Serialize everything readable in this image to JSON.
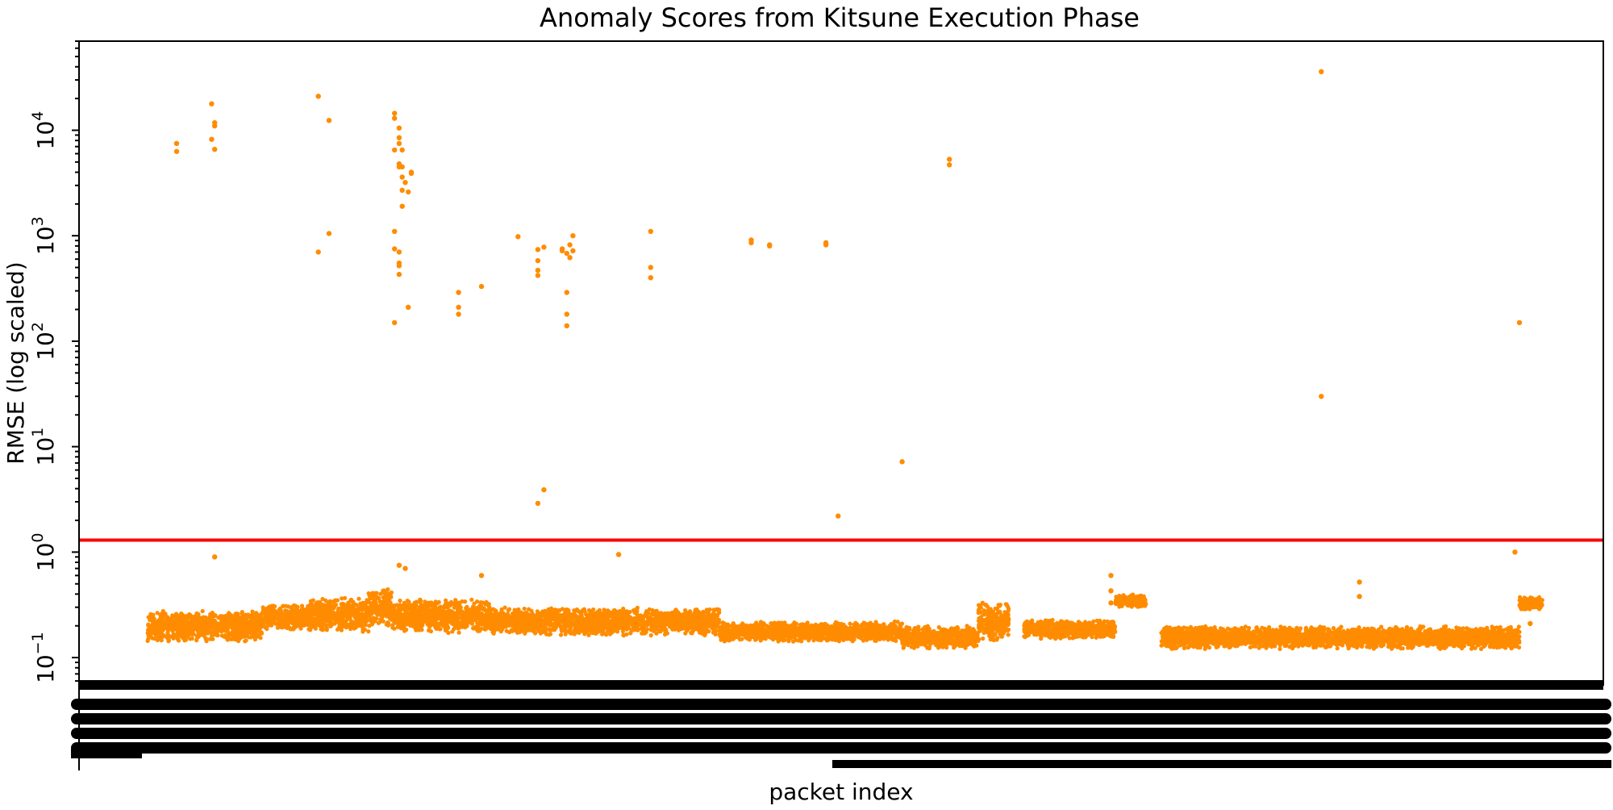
{
  "chart_data": {
    "type": "scatter",
    "title": "Anomaly Scores from Kitsune Execution Phase",
    "xlabel": "packet index",
    "ylabel": "RMSE (log scaled)",
    "y_scale": "log",
    "ylim": [
      0.055,
      70000
    ],
    "xlim": [
      0,
      1000
    ],
    "y_ticks": [
      {
        "base": "10",
        "exp": "−1",
        "value": 0.1
      },
      {
        "base": "10",
        "exp": "0",
        "value": 1
      },
      {
        "base": "10",
        "exp": "1",
        "value": 10
      },
      {
        "base": "10",
        "exp": "2",
        "value": 100
      },
      {
        "base": "10",
        "exp": "3",
        "value": 1000
      },
      {
        "base": "10",
        "exp": "4",
        "value": 10000
      }
    ],
    "x_tick_labels_legible": false,
    "threshold": {
      "value": 1.3,
      "color": "#ff0000"
    },
    "point_color": "#ff8c00",
    "baseline_band": [
      {
        "x0": 45,
        "x1": 120,
        "lo": 0.14,
        "hi": 0.28
      },
      {
        "x0": 120,
        "x1": 150,
        "lo": 0.18,
        "hi": 0.32
      },
      {
        "x0": 150,
        "x1": 190,
        "lo": 0.17,
        "hi": 0.38
      },
      {
        "x0": 190,
        "x1": 205,
        "lo": 0.18,
        "hi": 0.5
      },
      {
        "x0": 205,
        "x1": 270,
        "lo": 0.17,
        "hi": 0.36
      },
      {
        "x0": 270,
        "x1": 420,
        "lo": 0.16,
        "hi": 0.3
      },
      {
        "x0": 420,
        "x1": 540,
        "lo": 0.14,
        "hi": 0.22
      },
      {
        "x0": 540,
        "x1": 590,
        "lo": 0.12,
        "hi": 0.2
      },
      {
        "x0": 590,
        "x1": 610,
        "lo": 0.14,
        "hi": 0.35
      },
      {
        "x0": 620,
        "x1": 680,
        "lo": 0.15,
        "hi": 0.23
      },
      {
        "x0": 680,
        "x1": 700,
        "lo": 0.3,
        "hi": 0.4
      },
      {
        "x0": 710,
        "x1": 945,
        "lo": 0.12,
        "hi": 0.2
      },
      {
        "x0": 945,
        "x1": 960,
        "lo": 0.28,
        "hi": 0.38
      }
    ],
    "outliers": [
      {
        "x": 64,
        "y": 7500
      },
      {
        "x": 64,
        "y": 6300
      },
      {
        "x": 87,
        "y": 17800
      },
      {
        "x": 87,
        "y": 8200
      },
      {
        "x": 89,
        "y": 11800
      },
      {
        "x": 89,
        "y": 11000
      },
      {
        "x": 89,
        "y": 6600
      },
      {
        "x": 89,
        "y": 0.9
      },
      {
        "x": 157,
        "y": 21000
      },
      {
        "x": 157,
        "y": 700
      },
      {
        "x": 164,
        "y": 12400
      },
      {
        "x": 164,
        "y": 1050
      },
      {
        "x": 207,
        "y": 14500
      },
      {
        "x": 207,
        "y": 13000
      },
      {
        "x": 207,
        "y": 6500
      },
      {
        "x": 207,
        "y": 1100
      },
      {
        "x": 207,
        "y": 750
      },
      {
        "x": 207,
        "y": 150
      },
      {
        "x": 210,
        "y": 10500
      },
      {
        "x": 210,
        "y": 8500
      },
      {
        "x": 210,
        "y": 7500
      },
      {
        "x": 210,
        "y": 4800
      },
      {
        "x": 210,
        "y": 4500
      },
      {
        "x": 210,
        "y": 700
      },
      {
        "x": 210,
        "y": 550
      },
      {
        "x": 210,
        "y": 520
      },
      {
        "x": 210,
        "y": 430
      },
      {
        "x": 210,
        "y": 0.75
      },
      {
        "x": 212,
        "y": 6500
      },
      {
        "x": 212,
        "y": 4500
      },
      {
        "x": 212,
        "y": 3600
      },
      {
        "x": 212,
        "y": 2700
      },
      {
        "x": 212,
        "y": 1900
      },
      {
        "x": 214,
        "y": 3200
      },
      {
        "x": 214,
        "y": 0.7
      },
      {
        "x": 216,
        "y": 2600
      },
      {
        "x": 216,
        "y": 210
      },
      {
        "x": 218,
        "y": 4000
      },
      {
        "x": 218,
        "y": 3900
      },
      {
        "x": 249,
        "y": 290
      },
      {
        "x": 249,
        "y": 210
      },
      {
        "x": 249,
        "y": 180
      },
      {
        "x": 264,
        "y": 330
      },
      {
        "x": 264,
        "y": 0.6
      },
      {
        "x": 288,
        "y": 980
      },
      {
        "x": 301,
        "y": 740
      },
      {
        "x": 301,
        "y": 580
      },
      {
        "x": 301,
        "y": 470
      },
      {
        "x": 301,
        "y": 420
      },
      {
        "x": 301,
        "y": 2.9
      },
      {
        "x": 305,
        "y": 780
      },
      {
        "x": 305,
        "y": 3.9
      },
      {
        "x": 317,
        "y": 750
      },
      {
        "x": 317,
        "y": 720
      },
      {
        "x": 320,
        "y": 680
      },
      {
        "x": 320,
        "y": 290
      },
      {
        "x": 320,
        "y": 180
      },
      {
        "x": 320,
        "y": 140
      },
      {
        "x": 322,
        "y": 820
      },
      {
        "x": 322,
        "y": 620
      },
      {
        "x": 324,
        "y": 1000
      },
      {
        "x": 324,
        "y": 720
      },
      {
        "x": 354,
        "y": 0.95
      },
      {
        "x": 375,
        "y": 1100
      },
      {
        "x": 375,
        "y": 500
      },
      {
        "x": 375,
        "y": 400
      },
      {
        "x": 441,
        "y": 910
      },
      {
        "x": 441,
        "y": 860
      },
      {
        "x": 453,
        "y": 820
      },
      {
        "x": 453,
        "y": 800
      },
      {
        "x": 490,
        "y": 860
      },
      {
        "x": 490,
        "y": 820
      },
      {
        "x": 498,
        "y": 2.2
      },
      {
        "x": 540,
        "y": 7.2
      },
      {
        "x": 571,
        "y": 5300
      },
      {
        "x": 571,
        "y": 4700
      },
      {
        "x": 677,
        "y": 0.6
      },
      {
        "x": 677,
        "y": 0.43
      },
      {
        "x": 677,
        "y": 0.33
      },
      {
        "x": 815,
        "y": 36000
      },
      {
        "x": 815,
        "y": 30
      },
      {
        "x": 840,
        "y": 0.52
      },
      {
        "x": 840,
        "y": 0.38
      },
      {
        "x": 942,
        "y": 1.0
      },
      {
        "x": 945,
        "y": 150
      },
      {
        "x": 952,
        "y": 0.21
      }
    ]
  }
}
